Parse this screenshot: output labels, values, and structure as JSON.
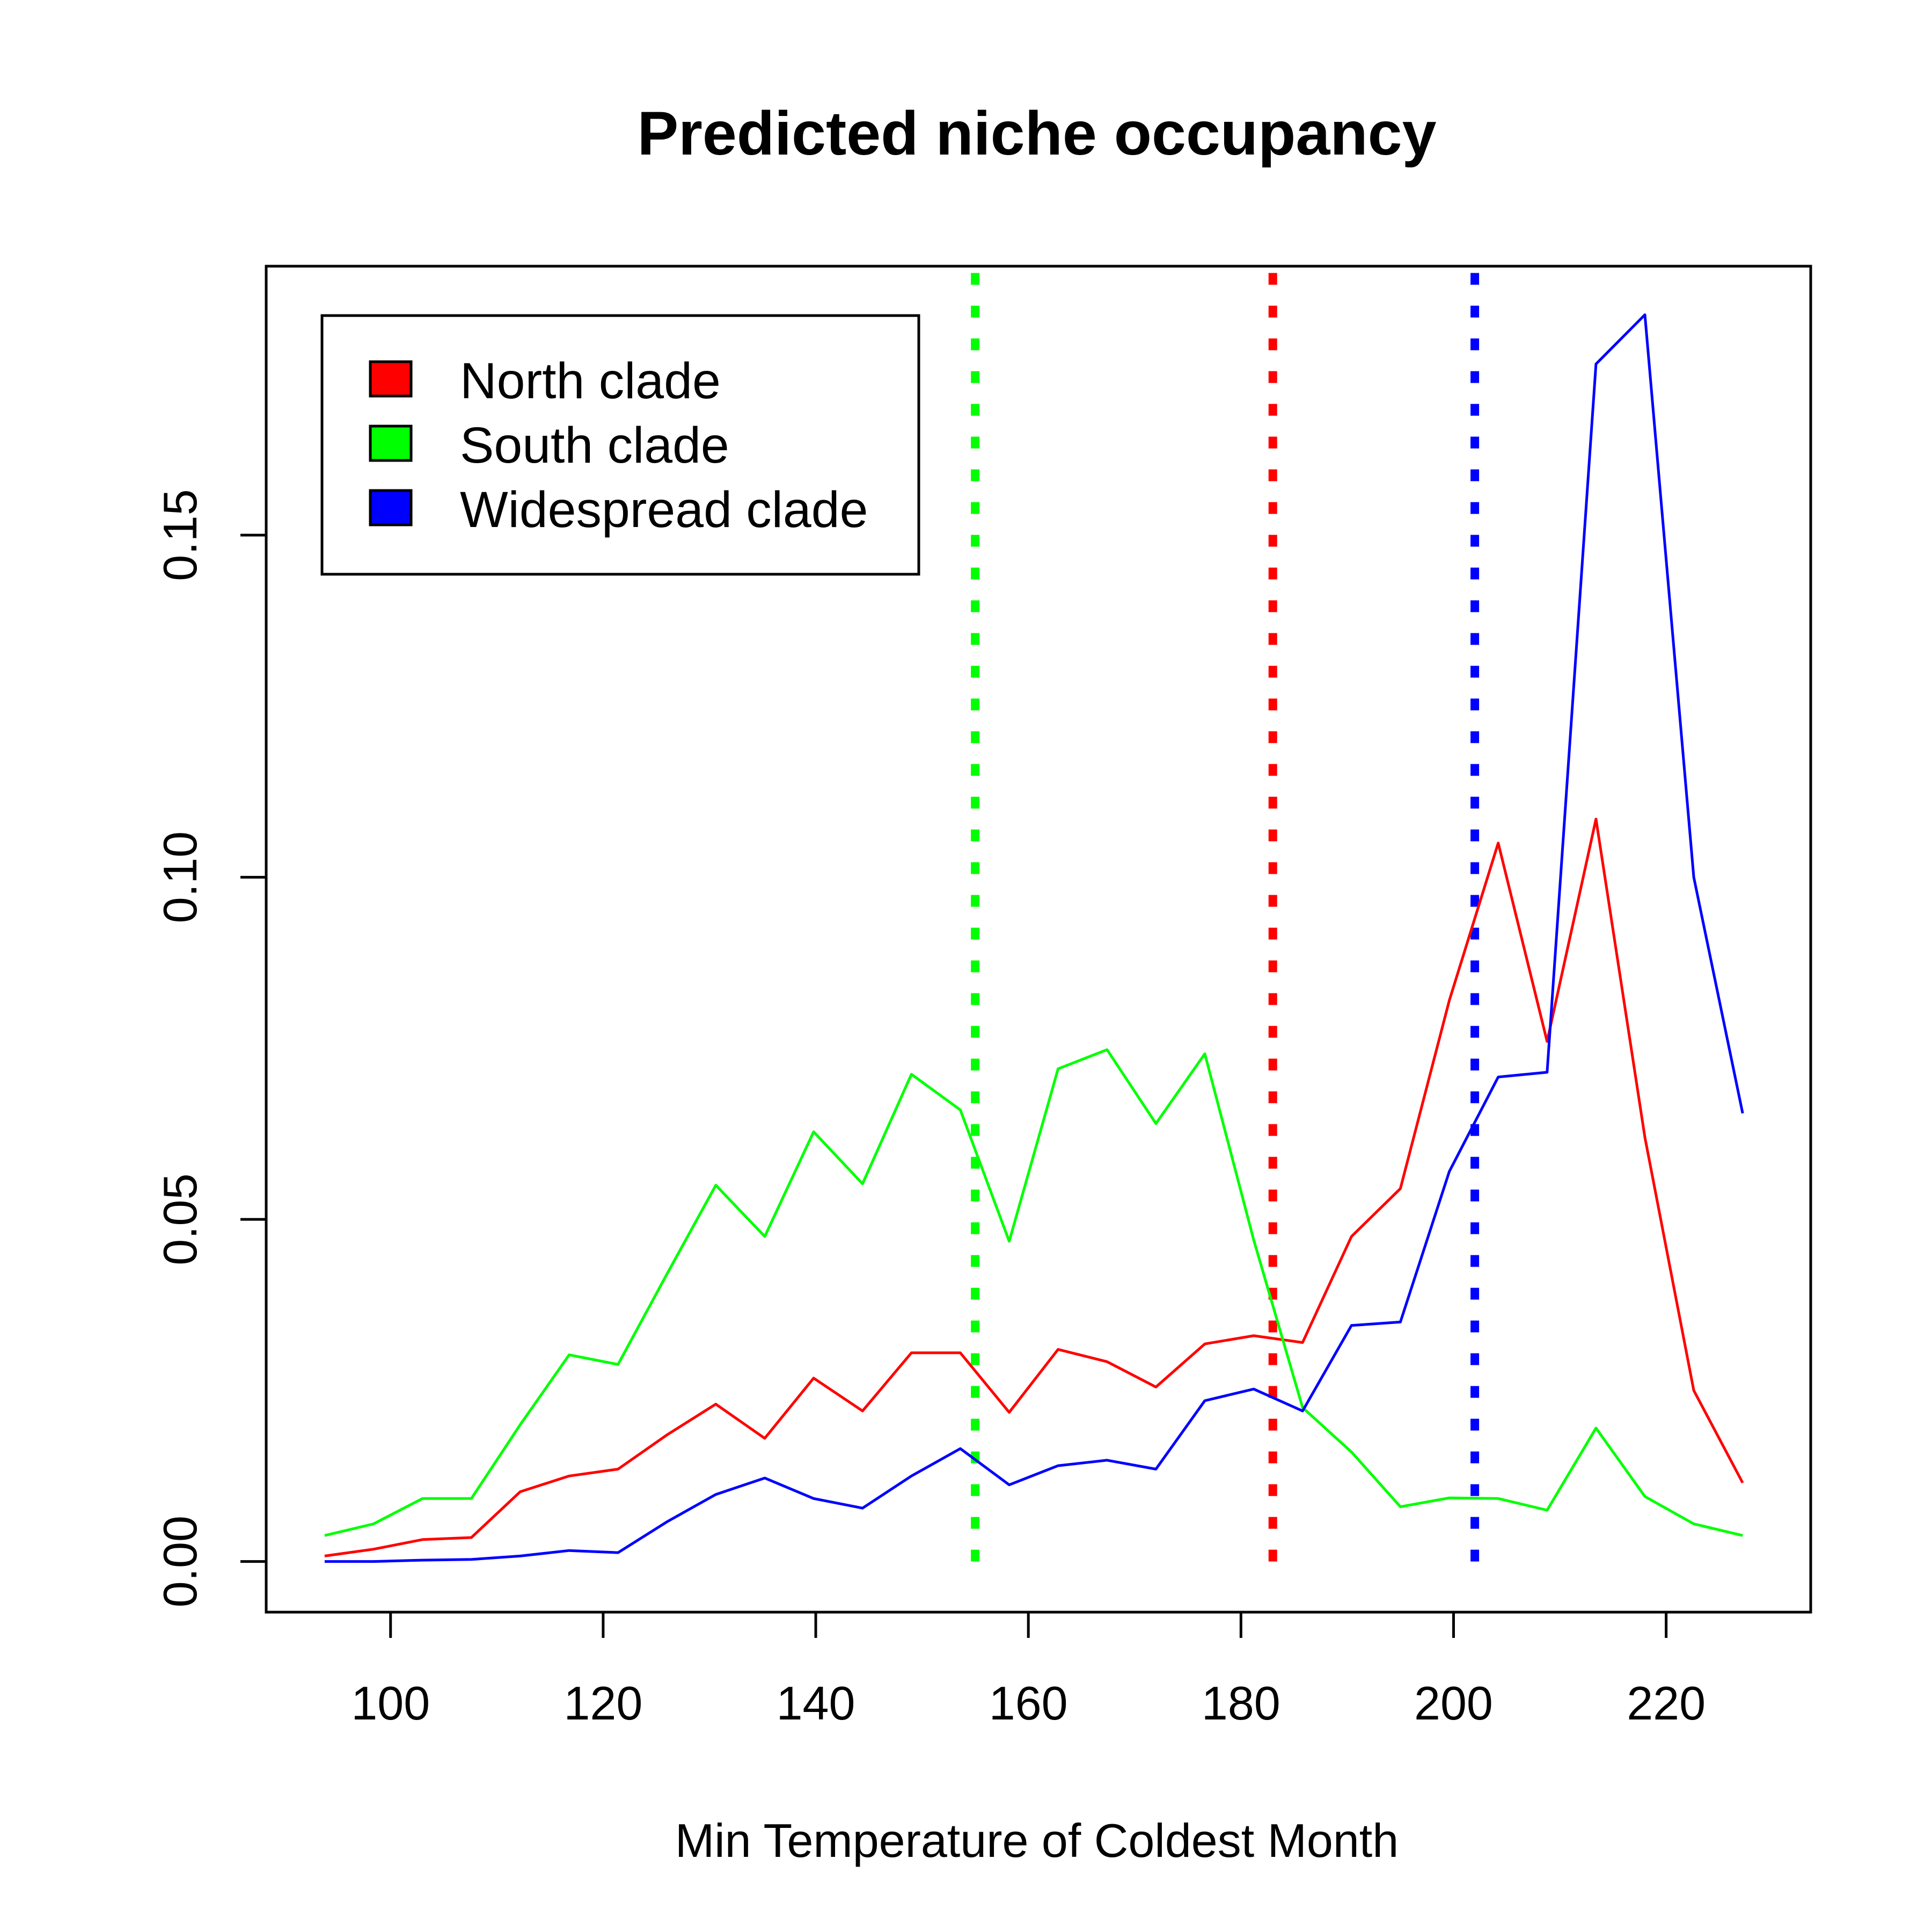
{
  "chart_data": {
    "type": "line",
    "title": "Predicted niche occupancy",
    "xlabel": "Min Temperature of Coldest Month",
    "ylabel": "",
    "xlim": [
      88.3,
      233.6
    ],
    "ylim": [
      -0.0074,
      0.1893
    ],
    "xticks": [
      100,
      120,
      140,
      160,
      180,
      200,
      220
    ],
    "xtick_labels": [
      "100",
      "120",
      "140",
      "160",
      "180",
      "200",
      "220"
    ],
    "yticks": [
      0.0,
      0.05,
      0.1,
      0.15
    ],
    "ytick_labels": [
      "0.00",
      "0.05",
      "0.10",
      "0.15"
    ],
    "grid": false,
    "legend": {
      "position": "top-left"
    },
    "x": [
      93.8,
      98.4,
      103.0,
      107.6,
      112.2,
      116.8,
      121.4,
      126.0,
      130.6,
      135.2,
      139.8,
      144.4,
      149.0,
      153.6,
      158.2,
      162.8,
      167.4,
      172.0,
      176.6,
      181.2,
      185.8,
      190.4,
      195.0,
      199.6,
      204.2,
      208.8,
      213.4,
      218.0,
      222.6,
      227.2
    ],
    "series": [
      {
        "name": "North clade",
        "color": "#ff0000",
        "values": [
          0.0008,
          0.0018,
          0.0032,
          0.0035,
          0.0102,
          0.0125,
          0.0135,
          0.0185,
          0.023,
          0.018,
          0.0268,
          0.022,
          0.0305,
          0.0305,
          0.0218,
          0.031,
          0.0292,
          0.0255,
          0.0318,
          0.033,
          0.032,
          0.0475,
          0.0545,
          0.082,
          0.105,
          0.076,
          0.1085,
          0.062,
          0.025,
          0.0115
        ]
      },
      {
        "name": "South clade",
        "color": "#00ff00",
        "values": [
          0.0038,
          0.0055,
          0.0092,
          0.0092,
          0.02,
          0.0302,
          0.0288,
          0.042,
          0.055,
          0.0475,
          0.0628,
          0.0552,
          0.0712,
          0.066,
          0.0468,
          0.072,
          0.0748,
          0.064,
          0.0742,
          0.047,
          0.0225,
          0.016,
          0.008,
          0.0093,
          0.0092,
          0.0075,
          0.0195,
          0.0095,
          0.0055,
          0.0038
        ]
      },
      {
        "name": "Widespread clade",
        "color": "#0000ff",
        "values": [
          0.0,
          0.0,
          0.0002,
          0.0003,
          0.0008,
          0.0016,
          0.0013,
          0.0058,
          0.0098,
          0.0122,
          0.0092,
          0.0078,
          0.0125,
          0.0165,
          0.0112,
          0.014,
          0.0148,
          0.0135,
          0.0235,
          0.0252,
          0.022,
          0.0345,
          0.035,
          0.057,
          0.0708,
          0.0715,
          0.175,
          0.1822,
          0.1,
          0.0655
        ]
      }
    ],
    "vlines": [
      {
        "x": 155.0,
        "color": "#00ff00",
        "style": "dotted"
      },
      {
        "x": 183.0,
        "color": "#ff0000",
        "style": "dotted"
      },
      {
        "x": 202.0,
        "color": "#0000ff",
        "style": "dotted"
      }
    ]
  }
}
